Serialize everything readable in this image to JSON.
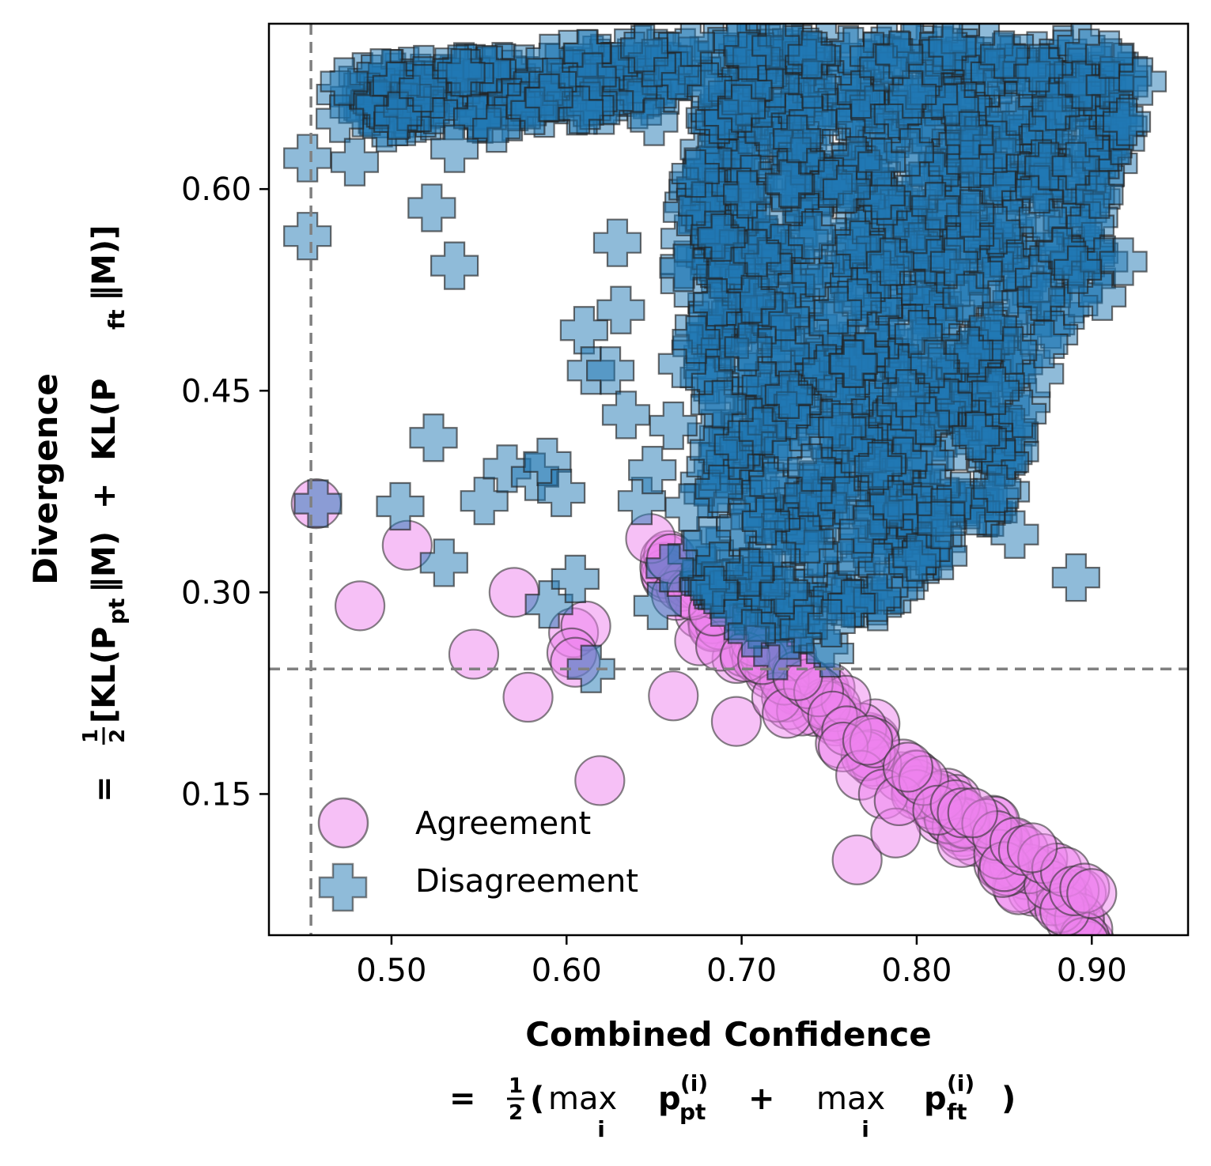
{
  "chart_data": {
    "type": "scatter",
    "title": "",
    "xlabel": "Combined Confidence",
    "xlabel_formula": {
      "prefix": "= ",
      "frac_num": "1",
      "frac_den": "2",
      "open": "(",
      "max_word": "max",
      "sub_i": "i",
      "p": "p",
      "sup_i": "(i)",
      "sub_pt": "pt",
      "plus": "+",
      "sub_ft": "ft",
      "close": ")"
    },
    "ylabel": "Divergence",
    "ylabel_formula": {
      "prefix": "= ",
      "frac_num": "1",
      "frac_den": "2",
      "part1": "[KL(P",
      "sub_pt": "pt",
      "mid1": "‖M)  +  KL(P",
      "sub_ft": "ft",
      "end": "‖M)]"
    },
    "xlim": [
      0.43,
      0.955
    ],
    "ylim": [
      0.045,
      0.723
    ],
    "xticks": [
      "0.50",
      "0.60",
      "0.70",
      "0.80",
      "0.90"
    ],
    "yticks": [
      "0.15",
      "0.30",
      "0.45",
      "0.60"
    ],
    "reference_lines": {
      "vertical_x": 0.454,
      "horizontal_y": 0.243
    },
    "legend": {
      "position": "lower-left",
      "entries": [
        "Agreement",
        "Disagreement"
      ]
    },
    "series": [
      {
        "name": "Agreement",
        "marker": "circle",
        "color": "#ee82ee",
        "points": [
          [
            0.457,
            0.366
          ],
          [
            0.509,
            0.335
          ],
          [
            0.482,
            0.29
          ],
          [
            0.57,
            0.3
          ],
          [
            0.547,
            0.254
          ],
          [
            0.578,
            0.222
          ],
          [
            0.604,
            0.27
          ],
          [
            0.611,
            0.275
          ],
          [
            0.603,
            0.255
          ],
          [
            0.605,
            0.248
          ],
          [
            0.619,
            0.16
          ],
          [
            0.661,
            0.223
          ],
          [
            0.697,
            0.204
          ],
          [
            0.648,
            0.34
          ],
          [
            0.66,
            0.325
          ],
          [
            0.676,
            0.264
          ],
          [
            0.688,
            0.26
          ],
          [
            0.702,
            0.252
          ],
          [
            0.72,
            0.222
          ],
          [
            0.726,
            0.21
          ],
          [
            0.738,
            0.232
          ],
          [
            0.744,
            0.226
          ],
          [
            0.752,
            0.208
          ],
          [
            0.76,
            0.197
          ],
          [
            0.758,
            0.185
          ],
          [
            0.766,
            0.101
          ],
          [
            0.768,
            0.164
          ],
          [
            0.776,
            0.188
          ],
          [
            0.781,
            0.15
          ],
          [
            0.788,
            0.121
          ],
          [
            0.79,
            0.145
          ],
          [
            0.8,
            0.164
          ],
          [
            0.804,
            0.16
          ],
          [
            0.812,
            0.138
          ],
          [
            0.822,
            0.142
          ],
          [
            0.826,
            0.136
          ],
          [
            0.84,
            0.128
          ],
          [
            0.846,
            0.119
          ],
          [
            0.85,
            0.096
          ],
          [
            0.856,
            0.114
          ],
          [
            0.861,
            0.108
          ],
          [
            0.872,
            0.102
          ],
          [
            0.88,
            0.095
          ],
          [
            0.885,
            0.092
          ],
          [
            0.89,
            0.078
          ],
          [
            0.896,
            0.08
          ],
          [
            0.9,
            0.076
          ],
          [
            0.672,
            0.298
          ],
          [
            0.684,
            0.286
          ],
          [
            0.712,
            0.25
          ],
          [
            0.732,
            0.238
          ],
          [
            0.772,
            0.19
          ],
          [
            0.795,
            0.17
          ],
          [
            0.832,
            0.136
          ],
          [
            0.866,
            0.11
          ]
        ]
      },
      {
        "name": "Disagreement",
        "marker": "plus",
        "color": "#1f77b4",
        "points": [
          [
            0.452,
            0.623
          ],
          [
            0.452,
            0.565
          ],
          [
            0.458,
            0.366
          ],
          [
            0.473,
            0.68
          ],
          [
            0.479,
            0.62
          ],
          [
            0.505,
            0.364
          ],
          [
            0.518,
            0.675
          ],
          [
            0.524,
            0.415
          ],
          [
            0.536,
            0.63
          ],
          [
            0.523,
            0.586
          ],
          [
            0.536,
            0.543
          ],
          [
            0.53,
            0.322
          ],
          [
            0.553,
            0.368
          ],
          [
            0.566,
            0.392
          ],
          [
            0.582,
            0.386
          ],
          [
            0.589,
            0.397
          ],
          [
            0.59,
            0.291
          ],
          [
            0.597,
            0.374
          ],
          [
            0.605,
            0.31
          ],
          [
            0.614,
            0.243
          ],
          [
            0.61,
            0.495
          ],
          [
            0.614,
            0.465
          ],
          [
            0.625,
            0.465
          ],
          [
            0.629,
            0.56
          ],
          [
            0.634,
            0.432
          ],
          [
            0.631,
            0.51
          ],
          [
            0.643,
            0.368
          ],
          [
            0.649,
            0.391
          ],
          [
            0.652,
            0.29
          ],
          [
            0.659,
            0.318
          ],
          [
            0.661,
            0.424
          ],
          [
            0.666,
            0.47
          ],
          [
            0.674,
            0.488
          ],
          [
            0.689,
            0.44
          ],
          [
            0.698,
            0.41
          ],
          [
            0.687,
            0.377
          ],
          [
            0.712,
            0.42
          ],
          [
            0.727,
            0.447
          ],
          [
            0.755,
            0.51
          ],
          [
            0.764,
            0.47
          ],
          [
            0.778,
            0.394
          ],
          [
            0.8,
            0.326
          ],
          [
            0.814,
            0.35
          ],
          [
            0.846,
            0.377
          ],
          [
            0.856,
            0.343
          ],
          [
            0.891,
            0.311
          ],
          [
            0.907,
            0.546
          ],
          [
            0.906,
            0.52
          ],
          [
            0.929,
            0.68
          ],
          [
            0.92,
            0.65
          ],
          [
            0.918,
            0.546
          ],
          [
            0.892,
            0.54
          ],
          [
            0.871,
            0.52
          ],
          [
            0.855,
            0.48
          ],
          [
            0.845,
            0.45
          ],
          [
            0.83,
            0.48
          ],
          [
            0.81,
            0.47
          ],
          [
            0.794,
            0.448
          ],
          [
            0.76,
            0.6
          ],
          [
            0.78,
            0.62
          ],
          [
            0.83,
            0.64
          ],
          [
            0.87,
            0.69
          ],
          [
            0.91,
            0.7
          ],
          [
            0.7,
            0.66
          ],
          [
            0.65,
            0.65
          ],
          [
            0.59,
            0.668
          ],
          [
            0.56,
            0.645
          ],
          [
            0.74,
            0.7
          ],
          [
            0.79,
            0.7
          ],
          [
            0.85,
            0.7
          ]
        ],
        "dense_region_polygon": [
          [
            0.7,
            0.705
          ],
          [
            0.75,
            0.71
          ],
          [
            0.82,
            0.712
          ],
          [
            0.89,
            0.71
          ],
          [
            0.925,
            0.69
          ],
          [
            0.918,
            0.64
          ],
          [
            0.905,
            0.58
          ],
          [
            0.9,
            0.52
          ],
          [
            0.9,
            0.5
          ],
          [
            0.876,
            0.48
          ],
          [
            0.86,
            0.42
          ],
          [
            0.85,
            0.36
          ],
          [
            0.82,
            0.33
          ],
          [
            0.79,
            0.3
          ],
          [
            0.77,
            0.275
          ],
          [
            0.75,
            0.252
          ],
          [
            0.735,
            0.244
          ],
          [
            0.722,
            0.244
          ],
          [
            0.712,
            0.255
          ],
          [
            0.7,
            0.27
          ],
          [
            0.69,
            0.285
          ],
          [
            0.675,
            0.31
          ],
          [
            0.668,
            0.33
          ],
          [
            0.668,
            0.36
          ],
          [
            0.677,
            0.39
          ],
          [
            0.682,
            0.43
          ],
          [
            0.674,
            0.48
          ],
          [
            0.665,
            0.54
          ],
          [
            0.67,
            0.6
          ],
          [
            0.68,
            0.66
          ]
        ]
      }
    ]
  }
}
